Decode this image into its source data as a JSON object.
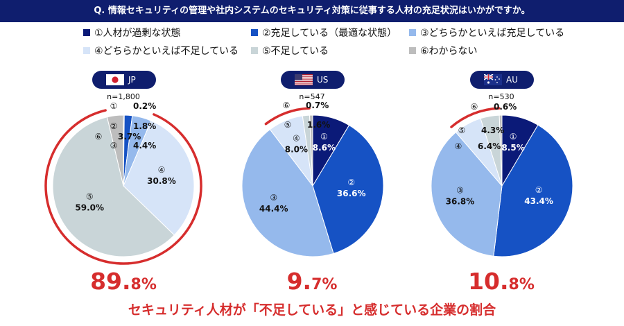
{
  "question": "Q. 情報セキュリティの管理や社内システムのセキュリティ対策に従事する人材の充足状況はいかがですか。",
  "legend": [
    {
      "label": "①人材が過剰な状態",
      "color": "#0b1a78"
    },
    {
      "label": "②充足している（最適な状態）",
      "color": "#1652c4"
    },
    {
      "label": "③どちらかといえば充足している",
      "color": "#95b9ec"
    },
    {
      "label": "④どちらかといえば不足している",
      "color": "#d6e4f8"
    },
    {
      "label": "⑤不足している",
      "color": "#c9d5d8"
    },
    {
      "label": "⑥わからない",
      "color": "#bdbdbd"
    }
  ],
  "chart_data": [
    {
      "type": "pie",
      "country": "JP",
      "n": "n=1,800",
      "categories": [
        "①",
        "②",
        "③",
        "④",
        "⑤",
        "⑥"
      ],
      "values": [
        0.2,
        1.8,
        4.4,
        30.8,
        59.0,
        3.7
      ],
      "labels": [
        "0.2%",
        "1.8%",
        "4.4%",
        "30.8%",
        "59.0%",
        "3.7%"
      ],
      "shortage_int": "89.",
      "shortage_dec": "8%"
    },
    {
      "type": "pie",
      "country": "US",
      "n": "n=547",
      "categories": [
        "①",
        "②",
        "③",
        "④",
        "⑤",
        "⑥"
      ],
      "values": [
        8.6,
        36.6,
        44.4,
        8.0,
        1.6,
        0.7
      ],
      "labels": [
        "8.6%",
        "36.6%",
        "44.4%",
        "8.0%",
        "1.6%",
        "0.7%"
      ],
      "shortage_int": "9.",
      "shortage_dec": "7%"
    },
    {
      "type": "pie",
      "country": "AU",
      "n": "n=530",
      "categories": [
        "①",
        "②",
        "③",
        "④",
        "⑤",
        "⑥"
      ],
      "values": [
        8.5,
        43.4,
        36.8,
        6.4,
        4.3,
        0.6
      ],
      "labels": [
        "8.5%",
        "43.4%",
        "36.8%",
        "6.4%",
        "4.3%",
        "0.6%"
      ],
      "shortage_int": "10.",
      "shortage_dec": "8%"
    }
  ],
  "footer": "セキュリティ人材が「不足している」と感じている企業の割合"
}
